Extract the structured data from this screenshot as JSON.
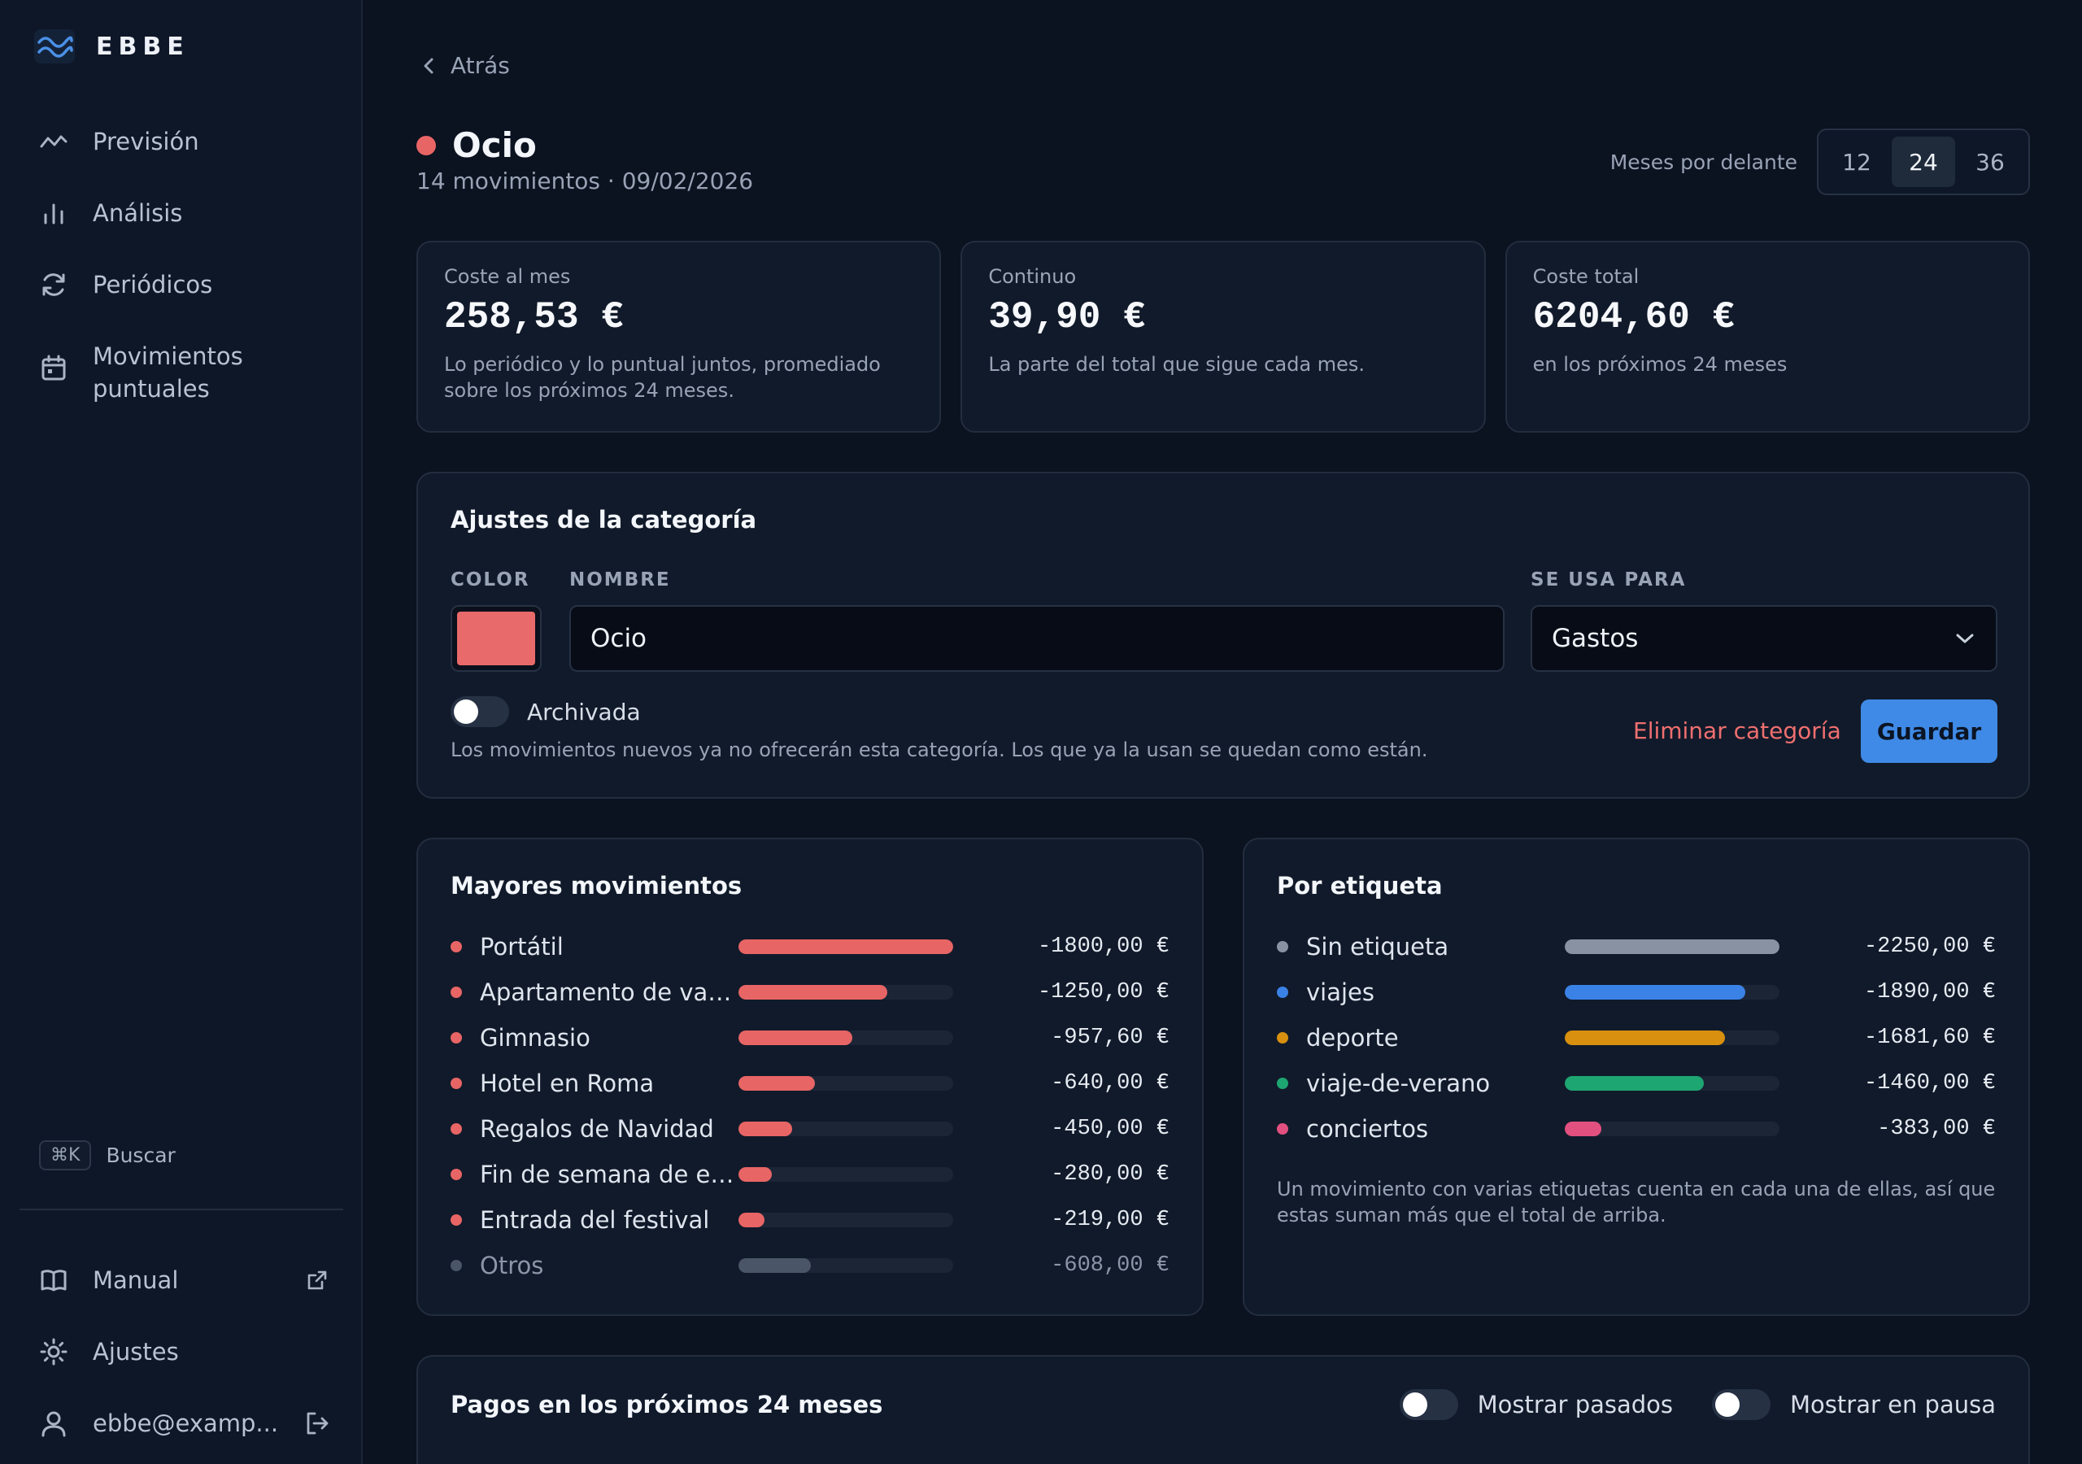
{
  "brand": {
    "name": "EBBE"
  },
  "sidebar": {
    "items": [
      {
        "label": "Previsión"
      },
      {
        "label": "Análisis"
      },
      {
        "label": "Periódicos"
      },
      {
        "label": "Movimientos puntuales"
      }
    ],
    "search": {
      "shortcut": "⌘K",
      "label": "Buscar"
    },
    "bottom": [
      {
        "label": "Manual"
      },
      {
        "label": "Ajustes"
      },
      {
        "label": "ebbe@examp..."
      }
    ]
  },
  "header": {
    "back_label": "Atrás",
    "title": "Ocio",
    "subtitle": "14 movimientos · 09/02/2026",
    "dot_color": "#e86565",
    "months_label": "Meses por delante",
    "months_options": [
      "12",
      "24",
      "36"
    ],
    "months_selected": "24"
  },
  "cards": [
    {
      "label": "Coste al mes",
      "value": "258,53 €",
      "desc": "Lo periódico y lo puntual juntos, promediado sobre los próximos 24 meses."
    },
    {
      "label": "Continuo",
      "value": "39,90 €",
      "desc": "La parte del total que sigue cada mes."
    },
    {
      "label": "Coste total",
      "value": "6204,60 €",
      "desc": "en los próximos 24 meses"
    }
  ],
  "settings": {
    "title": "Ajustes de la categoría",
    "color_label": "COLOR",
    "color_value": "#e86a6a",
    "name_label": "NOMBRE",
    "name_value": "Ocio",
    "used_for_label": "SE USA PARA",
    "used_for_value": "Gastos",
    "archived_label": "Archivada",
    "archived_on": false,
    "archived_help": "Los movimientos nuevos ya no ofrecerán esta categoría. Los que ya la usan se quedan como están.",
    "delete_label": "Eliminar categoría",
    "save_label": "Guardar"
  },
  "top_movements": {
    "title": "Mayores movimientos",
    "rows": [
      {
        "label": "Portátil",
        "value": "-1800,00 €",
        "amount": 1800,
        "color": "#e86565"
      },
      {
        "label": "Apartamento de vacac...",
        "value": "-1250,00 €",
        "amount": 1250,
        "color": "#e86565"
      },
      {
        "label": "Gimnasio",
        "value": "-957,60 €",
        "amount": 957.6,
        "color": "#e86565"
      },
      {
        "label": "Hotel en Roma",
        "value": "-640,00 €",
        "amount": 640,
        "color": "#e86565"
      },
      {
        "label": "Regalos de Navidad",
        "value": "-450,00 €",
        "amount": 450,
        "color": "#e86565"
      },
      {
        "label": "Fin de semana de entr...",
        "value": "-280,00 €",
        "amount": 280,
        "color": "#e86565"
      },
      {
        "label": "Entrada del festival",
        "value": "-219,00 €",
        "amount": 219,
        "color": "#e86565"
      },
      {
        "label": "Otros",
        "value": "-608,00 €",
        "amount": 608,
        "color": "#4a5668",
        "muted": true
      }
    ]
  },
  "by_tag": {
    "title": "Por etiqueta",
    "rows": [
      {
        "label": "Sin etiqueta",
        "value": "-2250,00 €",
        "amount": 2250,
        "color": "#8892a3"
      },
      {
        "label": "viajes",
        "value": "-1890,00 €",
        "amount": 1890,
        "color": "#3b82e6"
      },
      {
        "label": "deporte",
        "value": "-1681,60 €",
        "amount": 1681.6,
        "color": "#d8900e"
      },
      {
        "label": "viaje-de-verano",
        "value": "-1460,00 €",
        "amount": 1460,
        "color": "#1ea672"
      },
      {
        "label": "conciertos",
        "value": "-383,00 €",
        "amount": 383,
        "color": "#e2507f"
      }
    ],
    "note": "Un movimiento con varias etiquetas cuenta en cada una de ellas, así que estas suman más que el total de arriba."
  },
  "payments": {
    "title": "Pagos en los próximos 24 meses",
    "show_past_label": "Mostrar pasados",
    "show_paused_label": "Mostrar en pausa"
  }
}
